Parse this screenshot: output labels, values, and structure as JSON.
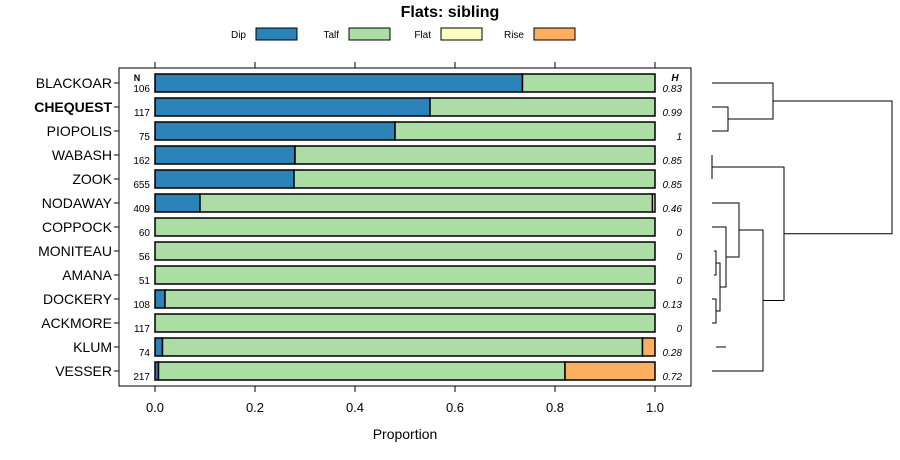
{
  "chart_data": {
    "type": "bar",
    "stacked": true,
    "orientation": "horizontal",
    "title": "Flats: sibling",
    "xlabel": "Proportion",
    "xlim": [
      0,
      1
    ],
    "xticks": [
      "0.0",
      "0.2",
      "0.4",
      "0.6",
      "0.8",
      "1.0"
    ],
    "legend": [
      {
        "name": "Dip",
        "color": "#2b83ba"
      },
      {
        "name": "Talf",
        "color": "#abdda4"
      },
      {
        "name": "Flat",
        "color": "#ffffbf"
      },
      {
        "name": "Rise",
        "color": "#fdae61"
      }
    ],
    "n_header": "N",
    "h_header": "H",
    "categories": [
      "BLACKOAR",
      "CHEQUEST",
      "PIOPOLIS",
      "WABASH",
      "ZOOK",
      "NODAWAY",
      "COPPOCK",
      "MONITEAU",
      "AMANA",
      "DOCKERY",
      "ACKMORE",
      "KLUM",
      "VESSER"
    ],
    "bold_category": "CHEQUEST",
    "n": [
      "106",
      "117",
      "75",
      "162",
      "655",
      "409",
      "60",
      "56",
      "51",
      "108",
      "117",
      "74",
      "217"
    ],
    "h": [
      "0.83",
      "0.99",
      "1",
      "0.85",
      "0.85",
      "0.46",
      "0",
      "0",
      "0",
      "0.13",
      "0",
      "0.28",
      "0.72"
    ],
    "series": [
      {
        "name": "Dip",
        "values": [
          0.735,
          0.55,
          0.48,
          0.28,
          0.278,
          0.09,
          0,
          0,
          0,
          0.02,
          0,
          0.015,
          0.007
        ]
      },
      {
        "name": "Talf",
        "values": [
          0.265,
          0.45,
          0.52,
          0.72,
          0.722,
          0.905,
          1,
          1,
          1,
          0.98,
          1,
          0.96,
          0.813
        ]
      },
      {
        "name": "Flat",
        "values": [
          0,
          0,
          0,
          0,
          0,
          0.005,
          0,
          0,
          0,
          0,
          0,
          0,
          0
        ]
      },
      {
        "name": "Rise",
        "values": [
          0,
          0,
          0,
          0,
          0,
          0,
          0,
          0,
          0,
          0,
          0,
          0.025,
          0.18
        ]
      }
    ]
  }
}
